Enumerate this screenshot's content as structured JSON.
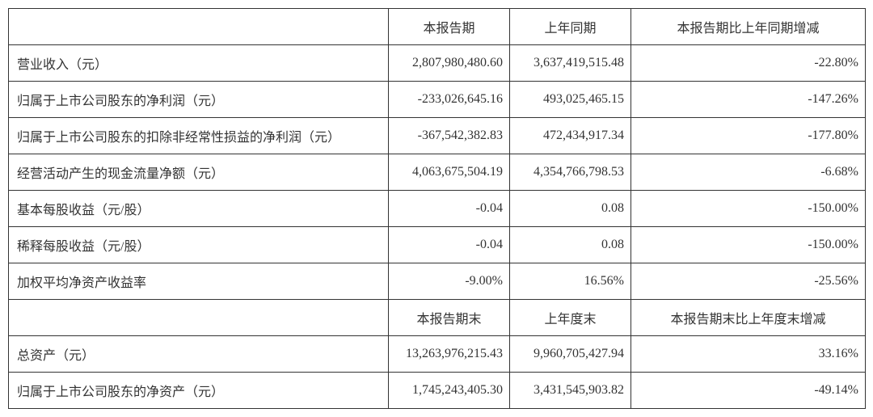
{
  "table": {
    "columns1": [
      "",
      "本报告期",
      "上年同期",
      "本报告期比上年同期增减"
    ],
    "rows1": [
      [
        "营业收入（元）",
        "2,807,980,480.60",
        "3,637,419,515.48",
        "-22.80%"
      ],
      [
        "归属于上市公司股东的净利润（元）",
        "-233,026,645.16",
        "493,025,465.15",
        "-147.26%"
      ],
      [
        "归属于上市公司股东的扣除非经常性损益的净利润（元）",
        "-367,542,382.83",
        "472,434,917.34",
        "-177.80%"
      ],
      [
        "经营活动产生的现金流量净额（元）",
        "4,063,675,504.19",
        "4,354,766,798.53",
        "-6.68%"
      ],
      [
        "基本每股收益（元/股）",
        "-0.04",
        "0.08",
        "-150.00%"
      ],
      [
        "稀释每股收益（元/股）",
        "-0.04",
        "0.08",
        "-150.00%"
      ],
      [
        "加权平均净资产收益率",
        "-9.00%",
        "16.56%",
        "-25.56%"
      ]
    ],
    "columns2": [
      "",
      "本报告期末",
      "上年度末",
      "本报告期末比上年度末增减"
    ],
    "rows2": [
      [
        "总资产（元）",
        "13,263,976,215.43",
        "9,960,705,427.94",
        "33.16%"
      ],
      [
        "归属于上市公司股东的净资产（元）",
        "1,745,243,405.30",
        "3,431,545,903.82",
        "-49.14%"
      ]
    ],
    "border_color": "#333333",
    "text_color": "#333333",
    "background_color": "#ffffff",
    "font_size": 16
  }
}
